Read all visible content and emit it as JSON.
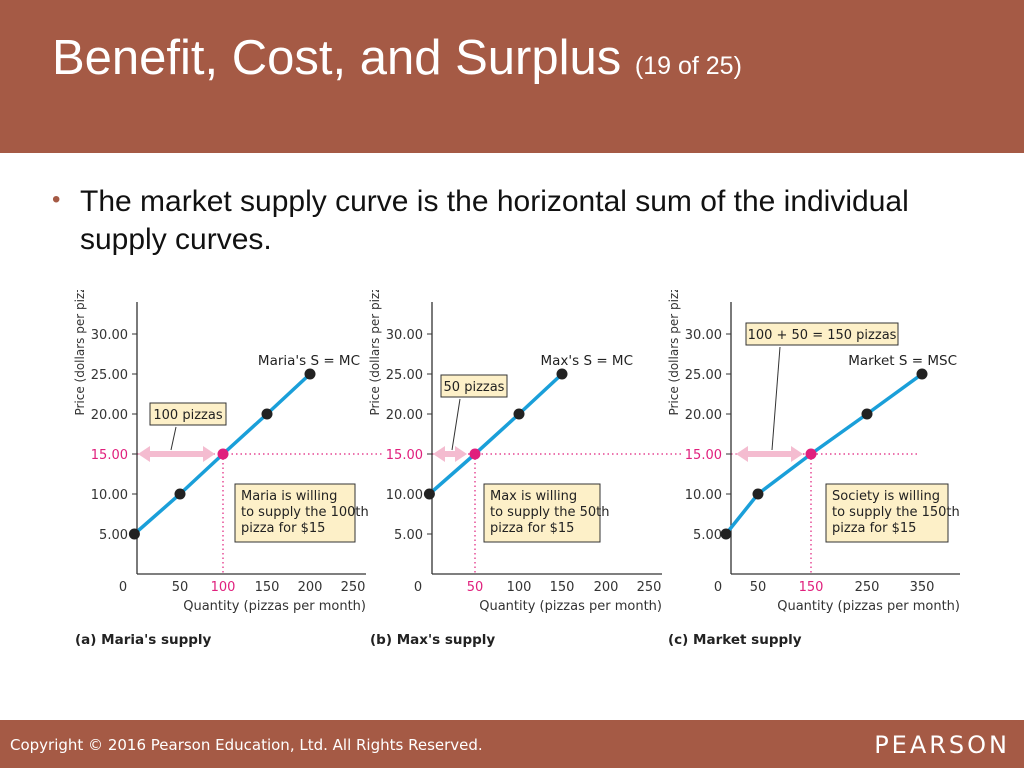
{
  "slide": {
    "title": "Benefit, Cost, and Surplus",
    "subtitle": "(19 of 25)",
    "bullet": "The market supply curve is the horizontal sum of the individual supply curves."
  },
  "footer": {
    "copyright": "Copyright © 2016 Pearson Education, Ltd. All Rights Reserved.",
    "logo": "PEARSON"
  },
  "colors": {
    "header": "#a55a45",
    "curve": "#1a9fd9",
    "highlight": "#e0207d",
    "arrow": "#f4bcd0",
    "callout": "#fdf0c8"
  },
  "chart_data": [
    {
      "type": "line",
      "caption": "(a) Maria's supply",
      "xlabel": "Quantity (pizzas per month)",
      "ylabel": "Price (dollars per pizza)",
      "x_ticks": [
        "0",
        "50",
        "100",
        "150",
        "200",
        "250"
      ],
      "y_ticks": [
        "5.00",
        "10.00",
        "15.00",
        "20.00",
        "25.00",
        "30.00"
      ],
      "series": [
        {
          "name": "Maria's S = MC",
          "points": [
            [
              10,
              5
            ],
            [
              50,
              10
            ],
            [
              100,
              15
            ],
            [
              150,
              20
            ],
            [
              200,
              25
            ]
          ]
        }
      ],
      "highlight": {
        "x": 100,
        "y": 15,
        "x_label": "100",
        "y_label": "15.00"
      },
      "quantity_label": "100 pizzas",
      "annotation": [
        "Maria is willing",
        "to supply the 100th",
        "pizza for $15"
      ]
    },
    {
      "type": "line",
      "caption": "(b) Max's supply",
      "xlabel": "Quantity (pizzas per month)",
      "ylabel": "Price (dollars per pizza)",
      "x_ticks": [
        "0",
        "50",
        "100",
        "150",
        "200",
        "250"
      ],
      "y_ticks": [
        "5.00",
        "10.00",
        "15.00",
        "20.00",
        "25.00",
        "30.00"
      ],
      "series": [
        {
          "name": "Max's S = MC",
          "points": [
            [
              10,
              10
            ],
            [
              50,
              15
            ],
            [
              100,
              20
            ],
            [
              150,
              25
            ]
          ]
        }
      ],
      "highlight": {
        "x": 50,
        "y": 15,
        "x_label": "50",
        "y_label": "15.00"
      },
      "quantity_label": "50 pizzas",
      "annotation": [
        "Max is willing",
        "to supply the 50th",
        "pizza for $15"
      ]
    },
    {
      "type": "line",
      "caption": "(c) Market supply",
      "xlabel": "Quantity (pizzas per month)",
      "ylabel": "Price (dollars per pizza)",
      "x_ticks": [
        "0",
        "50",
        "150",
        "250",
        "350"
      ],
      "y_ticks": [
        "5.00",
        "10.00",
        "15.00",
        "20.00",
        "25.00",
        "30.00"
      ],
      "series": [
        {
          "name": "Market S = MSC",
          "points": [
            [
              10,
              5
            ],
            [
              50,
              10
            ],
            [
              150,
              15
            ],
            [
              250,
              20
            ],
            [
              350,
              25
            ]
          ]
        }
      ],
      "highlight": {
        "x": 150,
        "y": 15,
        "x_label": "150",
        "y_label": "15.00"
      },
      "quantity_label": "100 + 50 = 150 pizzas",
      "annotation": [
        "Society is willing",
        "to supply the 150th",
        "pizza for $15"
      ]
    }
  ]
}
